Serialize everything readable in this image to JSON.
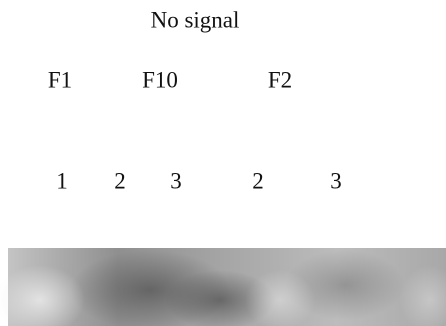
{
  "header": {
    "title": "No signal"
  },
  "groups": [
    "F1",
    "F10",
    "F2"
  ],
  "lanes": [
    "1",
    "2",
    "3",
    "2",
    "3"
  ]
}
